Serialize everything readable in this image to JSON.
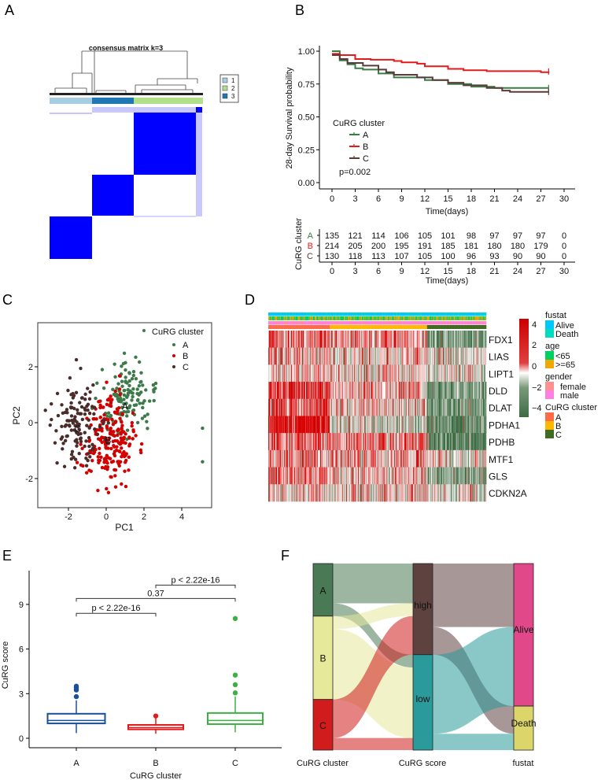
{
  "panel_labels": [
    "A",
    "B",
    "C",
    "D",
    "E",
    "F"
  ],
  "chart_data": [
    {
      "type": "heatmap",
      "title": "consensus matrix k=3",
      "legend": [
        "1",
        "2",
        "3"
      ],
      "colors": {
        "1": "#a6cee3",
        "2": "#b2df8a",
        "3": "#1f78b4",
        "block": "#0000ff"
      },
      "cluster_order": [
        "1",
        "3",
        "2"
      ],
      "cluster_fraction": [
        0.28,
        0.27,
        0.45
      ]
    },
    {
      "type": "line",
      "ylabel": "28-day Survival probability",
      "xlabel": "Time(days)",
      "x_ticks": [
        "0",
        "3",
        "6",
        "9",
        "12",
        "15",
        "18",
        "21",
        "24",
        "27",
        "30"
      ],
      "y_ticks": [
        "0.00",
        "0.25",
        "0.50",
        "0.75",
        "1.00"
      ],
      "xlim": [
        0,
        30
      ],
      "ylim": [
        0,
        1
      ],
      "legend_title": "CuRG cluster",
      "pvalue": "p=0.002",
      "series": [
        {
          "name": "A",
          "color": "#3a7d44",
          "steps": [
            [
              0,
              1
            ],
            [
              1,
              0.93
            ],
            [
              2,
              0.9
            ],
            [
              3,
              0.87
            ],
            [
              4,
              0.86
            ],
            [
              6,
              0.83
            ],
            [
              8,
              0.8
            ],
            [
              12,
              0.78
            ],
            [
              15,
              0.75
            ],
            [
              18,
              0.73
            ],
            [
              21,
              0.72
            ],
            [
              28,
              0.72
            ]
          ]
        },
        {
          "name": "B",
          "color": "#e31a1c",
          "steps": [
            [
              0,
              0.98
            ],
            [
              1,
              0.97
            ],
            [
              3,
              0.94
            ],
            [
              5,
              0.935
            ],
            [
              8,
              0.925
            ],
            [
              9,
              0.915
            ],
            [
              11,
              0.905
            ],
            [
              12,
              0.885
            ],
            [
              15,
              0.865
            ],
            [
              17,
              0.855
            ],
            [
              20,
              0.848
            ],
            [
              27,
              0.84
            ],
            [
              28,
              0.845
            ]
          ]
        },
        {
          "name": "C",
          "color": "#5a3a38",
          "steps": [
            [
              0,
              0.97
            ],
            [
              1,
              0.94
            ],
            [
              2,
              0.91
            ],
            [
              4,
              0.89
            ],
            [
              6,
              0.86
            ],
            [
              7,
              0.84
            ],
            [
              8,
              0.82
            ],
            [
              11,
              0.8
            ],
            [
              13,
              0.78
            ],
            [
              15,
              0.76
            ],
            [
              17,
              0.74
            ],
            [
              20,
              0.72
            ],
            [
              22,
              0.7
            ],
            [
              23,
              0.69
            ],
            [
              28,
              0.69
            ]
          ]
        }
      ],
      "risk_table": {
        "ylabel": "CuRG cluster",
        "xlabel": "Time(days)",
        "rows": [
          {
            "name": "A",
            "values": [
              "135",
              "121",
              "114",
              "106",
              "105",
              "101",
              "98",
              "97",
              "97",
              "97",
              "0"
            ]
          },
          {
            "name": "B",
            "values": [
              "214",
              "205",
              "200",
              "195",
              "191",
              "185",
              "181",
              "180",
              "180",
              "179",
              "0"
            ]
          },
          {
            "name": "C",
            "values": [
              "130",
              "118",
              "113",
              "107",
              "105",
              "100",
              "96",
              "93",
              "90",
              "90",
              "0"
            ]
          }
        ]
      }
    },
    {
      "type": "scatter",
      "xlabel": "PC1",
      "ylabel": "PC2",
      "x_ticks": [
        "-2",
        "0",
        "2",
        "4"
      ],
      "y_ticks": [
        "-2",
        "0",
        "2"
      ],
      "xlim": [
        -3.7,
        5.6
      ],
      "ylim": [
        -3.0,
        3.5
      ],
      "legend_title": "CuRG cluster",
      "series": [
        {
          "name": "A",
          "color": "#3d7a4a",
          "n": 135,
          "center": [
            1.0,
            0.8
          ],
          "sd": [
            0.75,
            0.7
          ],
          "extra": [
            [
              5.1,
              -0.2
            ],
            [
              5.1,
              -1.4
            ]
          ]
        },
        {
          "name": "B",
          "color": "#d40000",
          "n": 214,
          "center": [
            0.15,
            -0.6
          ],
          "sd": [
            0.65,
            0.75
          ],
          "extra": []
        },
        {
          "name": "C",
          "color": "#4a2c2a",
          "n": 130,
          "center": [
            -1.5,
            -0.1
          ],
          "sd": [
            0.7,
            0.8
          ],
          "extra": []
        }
      ],
      "centroid_labels": [
        {
          "text": "A",
          "x": 1.0,
          "y": 0.6
        },
        {
          "text": "B",
          "x": 0.1,
          "y": -0.6
        },
        {
          "text": "C",
          "x": -1.5,
          "y": -0.2
        }
      ]
    },
    {
      "type": "heatmap",
      "genes": [
        "FDX1",
        "LIAS",
        "LIPT1",
        "DLD",
        "DLAT",
        "PDHA1",
        "PDHB",
        "MTF1",
        "GLS",
        "CDKN2A"
      ],
      "cluster_sizes": {
        "A": 135,
        "B": 214,
        "C": 130
      },
      "cluster_means": [
        [
          1.6,
          1.2,
          -2.2
        ],
        [
          0.6,
          0.2,
          -0.6
        ],
        [
          0.5,
          -0.1,
          -0.3
        ],
        [
          2.4,
          0.6,
          -2.0
        ],
        [
          1.8,
          0.4,
          -2.0
        ],
        [
          3.0,
          -0.8,
          -2.6
        ],
        [
          1.4,
          1.2,
          -3.0
        ],
        [
          1.0,
          0.9,
          -0.4
        ],
        [
          1.2,
          0.5,
          -1.8
        ],
        [
          0.4,
          0.1,
          -0.6
        ]
      ],
      "scale_ticks": [
        "4",
        "2",
        "0",
        "−2",
        "−4"
      ],
      "scale_range": [
        -4,
        4
      ],
      "scale_colors": {
        "high": "#cc0000",
        "mid": "#ffffff",
        "low": "#3d6b42"
      },
      "annotations": [
        {
          "title": "fustat",
          "levels": [
            {
              "label": "Alive",
              "color": "#00c8ff"
            },
            {
              "label": "Death",
              "color": "#00dcc0"
            }
          ]
        },
        {
          "title": "age",
          "levels": [
            {
              "label": "<65",
              "color": "#00d060"
            },
            {
              "label": ">=65",
              "color": "#f0a800"
            }
          ]
        },
        {
          "title": "gender",
          "levels": [
            {
              "label": "female",
              "color": "#ff9090"
            },
            {
              "label": "male",
              "color": "#ff80e0"
            }
          ]
        },
        {
          "title": "CuRG cluster",
          "levels": [
            {
              "label": "A",
              "color": "#ff6a48"
            },
            {
              "label": "B",
              "color": "#ffb800"
            },
            {
              "label": "C",
              "color": "#3f6b22"
            }
          ]
        }
      ]
    },
    {
      "type": "bar",
      "subtype": "boxplot",
      "xlabel": "CuRG cluster",
      "ylabel": "CuRG score",
      "categories": [
        "A",
        "B",
        "C"
      ],
      "y_ticks": [
        "0",
        "3",
        "6",
        "9"
      ],
      "ylim": [
        -0.6,
        11.3
      ],
      "boxes": [
        {
          "name": "A",
          "color": "#1a4f9a",
          "min": 0.35,
          "q1": 1.0,
          "median": 1.2,
          "q3": 1.65,
          "max": 2.55,
          "outliers": [
            2.8,
            3.25,
            3.4,
            3.5
          ]
        },
        {
          "name": "B",
          "color": "#e31a1c",
          "min": 0.3,
          "q1": 0.6,
          "median": 0.72,
          "q3": 0.9,
          "max": 1.35,
          "outliers": [
            1.5
          ]
        },
        {
          "name": "C",
          "color": "#3cb043",
          "min": 0.4,
          "q1": 0.95,
          "median": 1.2,
          "q3": 1.7,
          "max": 2.8,
          "outliers": [
            3.05,
            3.6,
            4.25,
            8.05
          ]
        }
      ],
      "comparisons": [
        {
          "pair": [
            "A",
            "B"
          ],
          "label": "p < 2.22e-16",
          "level": 8.4
        },
        {
          "pair": [
            "A",
            "C"
          ],
          "label": "0.37",
          "level": 9.4
        },
        {
          "pair": [
            "B",
            "C"
          ],
          "label": "p < 2.22e-16",
          "level": 10.3
        }
      ]
    },
    {
      "type": "sankey",
      "axes": [
        "CuRG cluster",
        "CuRG score",
        "fustat"
      ],
      "nodes": [
        [
          {
            "name": "A",
            "value": 135,
            "color": "#4a7a55"
          },
          {
            "name": "B",
            "value": 214,
            "color": "#e6e89a"
          },
          {
            "name": "C",
            "value": 130,
            "color": "#d01c1c"
          }
        ],
        [
          {
            "name": "high",
            "value": 234,
            "color": "#5e4240"
          },
          {
            "name": "low",
            "value": 245,
            "color": "#2a9a9a"
          }
        ],
        [
          {
            "name": "Alive",
            "value": 366,
            "color": "#e0488a"
          },
          {
            "name": "Death",
            "value": 113,
            "color": "#dcd66a"
          }
        ]
      ],
      "flows": [
        {
          "from": [
            0,
            "A"
          ],
          "to": "high",
          "value": 102
        },
        {
          "from": [
            0,
            "A"
          ],
          "to": "low",
          "value": 33
        },
        {
          "from": [
            0,
            "B"
          ],
          "to": "high",
          "value": 33
        },
        {
          "from": [
            0,
            "B"
          ],
          "to": "low",
          "value": 181
        },
        {
          "from": [
            0,
            "C"
          ],
          "to": "high",
          "value": 99
        },
        {
          "from": [
            0,
            "C"
          ],
          "to": "low",
          "value": 31
        },
        {
          "from": [
            1,
            "high"
          ],
          "to": "Alive",
          "value": 163
        },
        {
          "from": [
            1,
            "high"
          ],
          "to": "Death",
          "value": 71
        },
        {
          "from": [
            1,
            "low"
          ],
          "to": "Alive",
          "value": 203
        },
        {
          "from": [
            1,
            "low"
          ],
          "to": "Death",
          "value": 42
        }
      ]
    }
  ]
}
